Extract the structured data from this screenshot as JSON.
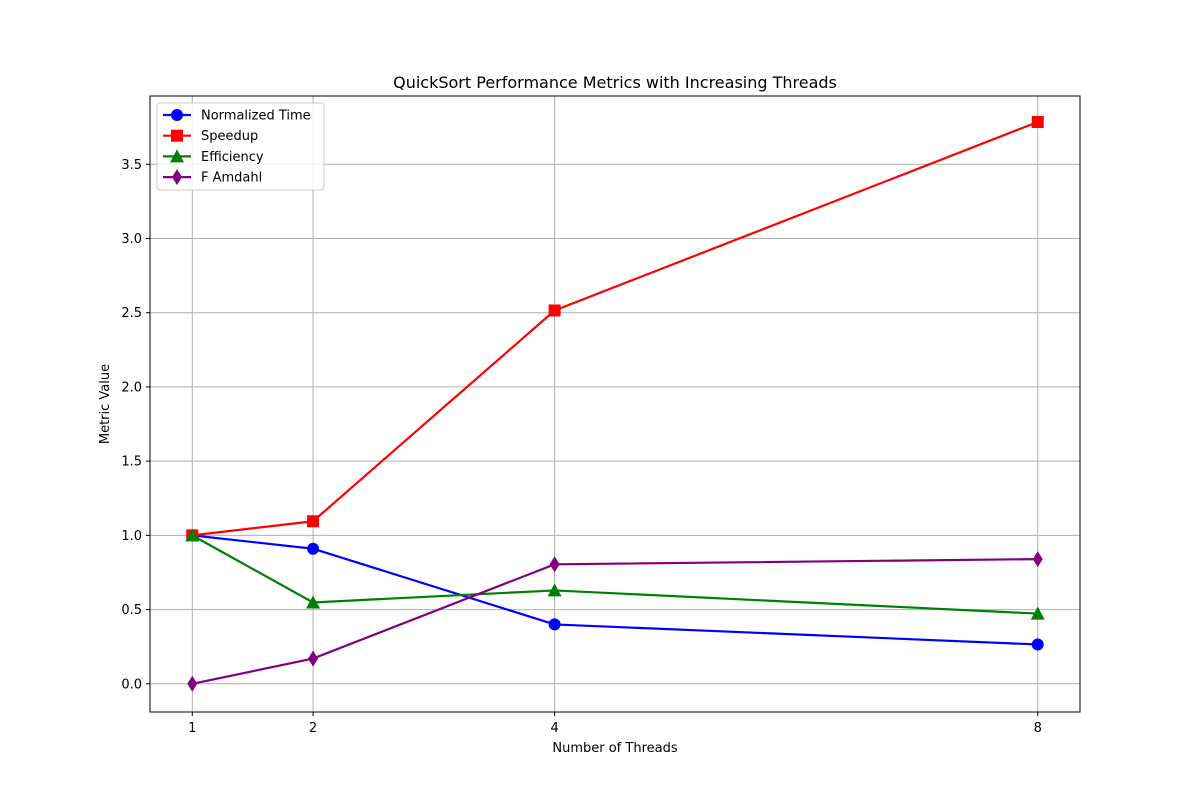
{
  "chart_data": {
    "type": "line",
    "title": "QuickSort Performance Metrics with Increasing Threads",
    "xlabel": "Number of Threads",
    "ylabel": "Metric Value",
    "x": [
      1,
      2,
      4,
      8
    ],
    "x_ticks": [
      "1",
      "2",
      "4",
      "8"
    ],
    "xlim": [
      0.65,
      8.35
    ],
    "ylim": [
      -0.19,
      3.96
    ],
    "y_ticks": [
      "0.0",
      "0.5",
      "1.0",
      "1.5",
      "2.0",
      "2.5",
      "3.0",
      "3.5"
    ],
    "grid": true,
    "legend_position": "top-left",
    "series": [
      {
        "name": "Normalized Time",
        "color": "#0000ff",
        "marker": "circle",
        "values": [
          1.0,
          0.91,
          0.4,
          0.265
        ]
      },
      {
        "name": "Speedup",
        "color": "#ff0000",
        "marker": "square",
        "values": [
          1.0,
          1.095,
          2.515,
          3.785
        ]
      },
      {
        "name": "Efficiency",
        "color": "#008000",
        "marker": "triangle",
        "values": [
          1.0,
          0.548,
          0.629,
          0.473
        ]
      },
      {
        "name": "F Amdahl",
        "color": "#800080",
        "marker": "diamond",
        "values": [
          0.0,
          0.17,
          0.805,
          0.84
        ]
      }
    ]
  }
}
